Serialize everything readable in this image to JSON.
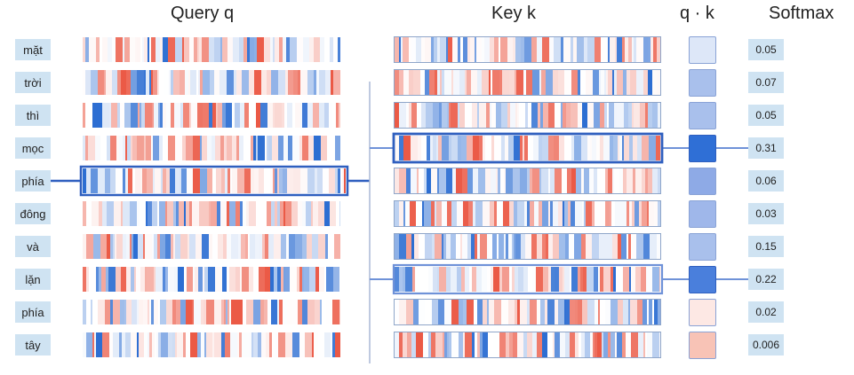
{
  "headers": {
    "query": "Query q",
    "key": "Key k",
    "dot": "q · k",
    "softmax": "Softmax"
  },
  "tokens": [
    "mặt",
    "trời",
    "thì",
    "mọc",
    "phía",
    "đông",
    "và",
    "lặn",
    "phía",
    "tây"
  ],
  "softmax": [
    "0.05",
    "0.07",
    "0.05",
    "0.31",
    "0.06",
    "0.03",
    "0.15",
    "0.22",
    "0.02",
    "0.006"
  ],
  "query_token_index": 4,
  "highlighted_key_indices": [
    3,
    7
  ],
  "score_colors": [
    "#dde7f8",
    "#a9c0ec",
    "#a9c0ec",
    "#2f6fd6",
    "#8eaae6",
    "#9fb7ea",
    "#a9c0ec",
    "#4a7fdc",
    "#fde8e4",
    "#f8c3b6"
  ],
  "colors": {
    "token_bg": "#cfe3f2",
    "highlight": "#2f5fbf",
    "connector": "#6f92d8"
  }
}
